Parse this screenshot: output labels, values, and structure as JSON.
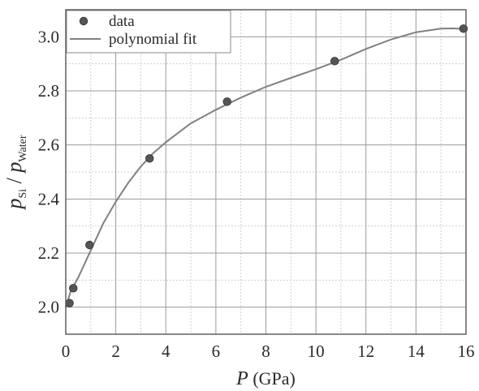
{
  "chart_data": {
    "type": "scatter",
    "xlabel": {
      "var": "P",
      "unit": " (GPa)"
    },
    "ylabel": {
      "p1": "p",
      "sub1": "Si",
      "slash": " / ",
      "p2": "p",
      "sub2": "Water"
    },
    "xlim": [
      0,
      16
    ],
    "ylim": [
      1.9,
      3.1
    ],
    "xticks": [
      0,
      2,
      4,
      6,
      8,
      10,
      12,
      14,
      16
    ],
    "yticks": [
      2.0,
      2.2,
      2.4,
      2.6,
      2.8,
      3.0
    ],
    "grid": true,
    "minor_grid": true,
    "legend_position": "top-left",
    "series": [
      {
        "name": "data",
        "kind": "points",
        "color": "#555555",
        "x": [
          0.15,
          0.3,
          0.95,
          3.35,
          6.45,
          10.75,
          15.9
        ],
        "y": [
          2.015,
          2.07,
          2.23,
          2.55,
          2.76,
          2.91,
          3.03
        ]
      },
      {
        "name": "polynomial fit",
        "kind": "line",
        "color": "#808080",
        "x": [
          0.0,
          0.2,
          0.5,
          1.0,
          1.5,
          2.0,
          2.5,
          3.0,
          3.5,
          4.0,
          5.0,
          6.0,
          7.0,
          8.0,
          9.0,
          10.0,
          11.0,
          12.0,
          13.0,
          14.0,
          15.0,
          15.5,
          16.0
        ],
        "y": [
          2.0,
          2.06,
          2.11,
          2.21,
          2.31,
          2.39,
          2.46,
          2.52,
          2.57,
          2.61,
          2.68,
          2.73,
          2.775,
          2.815,
          2.848,
          2.88,
          2.915,
          2.955,
          2.99,
          3.017,
          3.03,
          3.031,
          3.028
        ]
      }
    ]
  }
}
